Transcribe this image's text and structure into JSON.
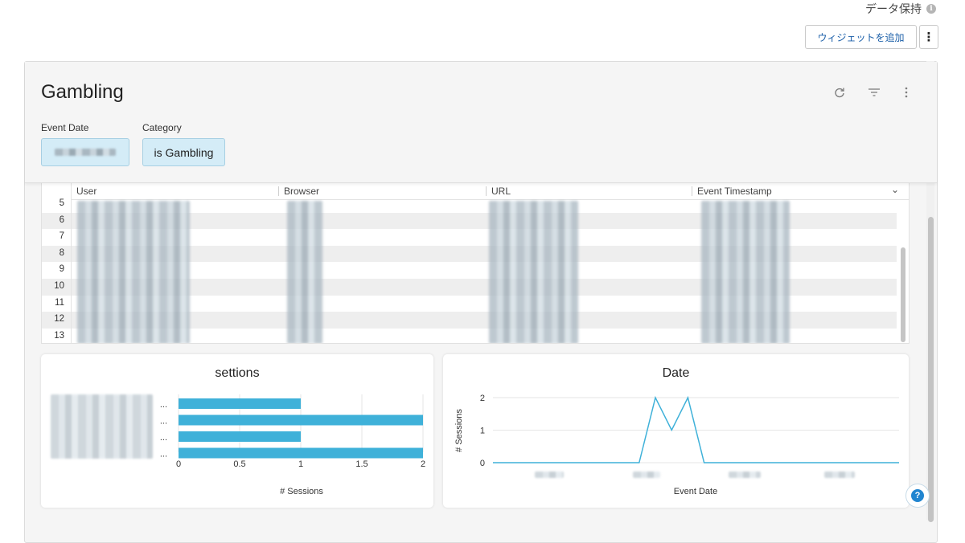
{
  "toolbar": {
    "retention_label": "データ保持",
    "add_widget_label": "ウィジェットを追加",
    "more_label": "⋮"
  },
  "dashboard": {
    "title": "Gambling",
    "icons": [
      "refresh-icon",
      "filter-icon",
      "kebab-icon"
    ],
    "filters": [
      {
        "label": "Event Date",
        "value": ""
      },
      {
        "label": "Category",
        "value": "is Gambling"
      }
    ]
  },
  "table": {
    "columns": [
      "User",
      "Browser",
      "URL",
      "Event Timestamp"
    ],
    "rows": [
      "5",
      "6",
      "7",
      "8",
      "9",
      "10",
      "11",
      "12",
      "13"
    ],
    "chevron": "⌄"
  },
  "chart_data": [
    {
      "type": "bar",
      "title": "settions",
      "orientation": "horizontal",
      "categories": [
        "...",
        "...",
        "...",
        "..."
      ],
      "values": [
        1,
        2,
        1,
        2
      ],
      "xlabel": "# Sessions",
      "ylabel": "",
      "xlim": [
        0,
        2
      ],
      "ticks": [
        "0",
        "0.5",
        "1",
        "1.5",
        "2"
      ],
      "color": "#3fb1d9"
    },
    {
      "type": "line",
      "title": "Date",
      "xlabel": "Event Date",
      "ylabel": "# Sessions",
      "ylim": [
        0,
        2
      ],
      "yticks": [
        "0",
        "1",
        "2"
      ],
      "values": [
        0,
        0,
        0,
        0,
        0,
        0,
        0,
        0,
        0,
        0,
        2,
        1,
        2,
        0,
        0,
        0,
        0,
        0,
        0,
        0,
        0,
        0,
        0,
        0,
        0,
        0
      ],
      "color": "#3fb1d9"
    }
  ],
  "help": {
    "label": "?"
  }
}
